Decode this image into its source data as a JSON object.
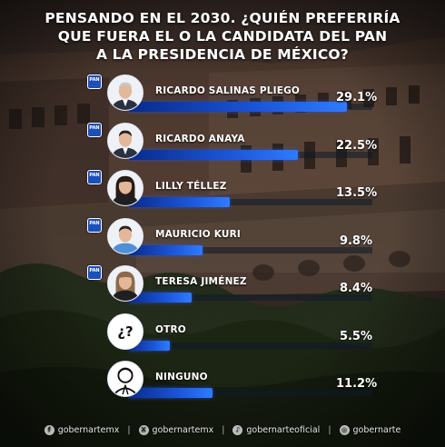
{
  "title_lines": [
    "PENSANDO EN EL 2030. ¿QUIÉN PREFERIRÍA",
    "QUE FUERA EL O LA CANDIDATA DEL PAN",
    "A LA PRESIDENCIA DE MÉXICO?"
  ],
  "party_badge_text": "PAN",
  "chart_data": {
    "type": "bar",
    "orientation": "horizontal",
    "title": "PENSANDO EN EL 2030. ¿QUIÉN PREFERIRÍA QUE FUERA EL O LA CANDIDATA DEL PAN A LA PRESIDENCIA DE MÉXICO?",
    "categories": [
      "RICARDO SALINAS PLIEGO",
      "RICARDO ANAYA",
      "LILLY TÉLLEZ",
      "MAURICIO KURI",
      "TERESA JIMÉNEZ",
      "OTRO",
      "NINGUNO"
    ],
    "values": [
      29.1,
      22.5,
      13.5,
      9.8,
      8.4,
      5.5,
      11.2
    ],
    "value_labels": [
      "29.1%",
      "22.5%",
      "13.5%",
      "9.8%",
      "8.4%",
      "5.5%",
      "11.2%"
    ],
    "unit": "%",
    "xlim": [
      0,
      29.1
    ],
    "bar_color": "#1b56d8",
    "grid": false,
    "legend": "none"
  },
  "rows": [
    {
      "avatar": "man-gray-hair-suit",
      "party": true
    },
    {
      "avatar": "man-dark-hair-suit",
      "party": true
    },
    {
      "avatar": "woman-long-dark-hair",
      "party": true
    },
    {
      "avatar": "man-smiling-blue-shirt",
      "party": true
    },
    {
      "avatar": "woman-light-hair",
      "party": true
    },
    {
      "avatar": "question-mark-icon",
      "party": false,
      "icon_text": "¿?"
    },
    {
      "avatar": "person-outline-icon",
      "party": false
    }
  ],
  "footer": [
    {
      "icon": "facebook-icon",
      "glyph": "f",
      "text": "gobernartemx"
    },
    {
      "icon": "x-icon",
      "glyph": "X",
      "text": "gobernartemx"
    },
    {
      "icon": "tiktok-icon",
      "glyph": "♪",
      "text": "gobernarteoficial"
    },
    {
      "icon": "instagram-icon",
      "glyph": "◎",
      "text": "gobernarte"
    }
  ],
  "colors": {
    "bar_fill": "#1b56d8",
    "badge": "#1d4fb8",
    "text": "#ffffff"
  }
}
